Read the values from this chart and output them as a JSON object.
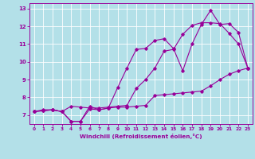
{
  "xlabel": "Windchill (Refroidissement éolien,°C)",
  "background_color": "#b3e0e8",
  "grid_color": "#ffffff",
  "line_color": "#990099",
  "xlim": [
    -0.5,
    23.5
  ],
  "ylim": [
    6.5,
    13.3
  ],
  "xticks": [
    0,
    1,
    2,
    3,
    4,
    5,
    6,
    7,
    8,
    9,
    10,
    11,
    12,
    13,
    14,
    15,
    16,
    17,
    18,
    19,
    20,
    21,
    22,
    23
  ],
  "yticks": [
    7,
    8,
    9,
    10,
    11,
    12,
    13
  ],
  "line1_x": [
    0,
    1,
    2,
    3,
    4,
    5,
    6,
    7,
    8,
    9,
    10,
    11,
    12,
    13,
    14,
    15,
    16,
    17,
    18,
    19,
    20,
    21,
    22,
    23
  ],
  "line1_y": [
    7.2,
    7.25,
    7.3,
    7.2,
    6.65,
    6.65,
    7.35,
    7.3,
    7.4,
    7.45,
    7.45,
    7.5,
    7.55,
    8.1,
    8.15,
    8.2,
    8.25,
    8.3,
    8.35,
    8.65,
    9.0,
    9.3,
    9.5,
    9.65
  ],
  "line2_x": [
    0,
    1,
    2,
    3,
    4,
    5,
    6,
    7,
    8,
    9,
    10,
    11,
    12,
    13,
    14,
    15,
    16,
    17,
    18,
    19,
    20,
    21,
    22,
    23
  ],
  "line2_y": [
    7.2,
    7.25,
    7.3,
    7.2,
    6.65,
    6.65,
    7.5,
    7.3,
    7.4,
    8.55,
    9.65,
    10.7,
    10.75,
    11.2,
    11.3,
    10.75,
    9.5,
    11.0,
    12.1,
    12.9,
    12.1,
    12.15,
    11.65,
    9.65
  ],
  "line3_x": [
    0,
    1,
    2,
    3,
    4,
    5,
    6,
    7,
    8,
    9,
    10,
    11,
    12,
    13,
    14,
    15,
    16,
    17,
    18,
    19,
    20,
    21,
    22,
    23
  ],
  "line3_y": [
    7.2,
    7.3,
    7.3,
    7.2,
    7.5,
    7.45,
    7.4,
    7.4,
    7.45,
    7.5,
    7.55,
    8.5,
    9.0,
    9.65,
    10.6,
    10.7,
    11.55,
    12.05,
    12.2,
    12.2,
    12.15,
    11.6,
    11.0,
    9.65
  ]
}
